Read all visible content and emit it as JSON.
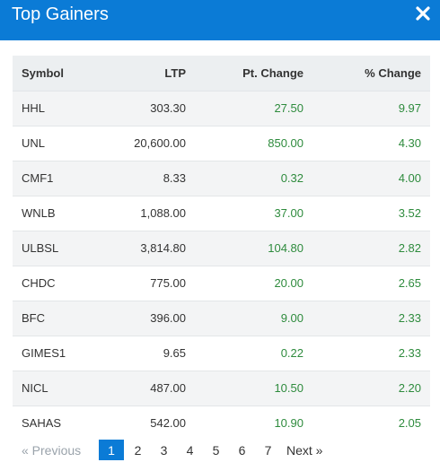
{
  "header": {
    "title": "Top Gainers",
    "background": "#0b7bd6"
  },
  "table": {
    "columns": [
      "Symbol",
      "LTP",
      "Pt. Change",
      "% Change"
    ],
    "rows": [
      {
        "symbol": "HHL",
        "ltp": "303.30",
        "pt_change": "27.50",
        "pct_change": "9.97"
      },
      {
        "symbol": "UNL",
        "ltp": "20,600.00",
        "pt_change": "850.00",
        "pct_change": "4.30"
      },
      {
        "symbol": "CMF1",
        "ltp": "8.33",
        "pt_change": "0.32",
        "pct_change": "4.00"
      },
      {
        "symbol": "WNLB",
        "ltp": "1,088.00",
        "pt_change": "37.00",
        "pct_change": "3.52"
      },
      {
        "symbol": "ULBSL",
        "ltp": "3,814.80",
        "pt_change": "104.80",
        "pct_change": "2.82"
      },
      {
        "symbol": "CHDC",
        "ltp": "775.00",
        "pt_change": "20.00",
        "pct_change": "2.65"
      },
      {
        "symbol": "BFC",
        "ltp": "396.00",
        "pt_change": "9.00",
        "pct_change": "2.33"
      },
      {
        "symbol": "GIMES1",
        "ltp": "9.65",
        "pt_change": "0.22",
        "pct_change": "2.33"
      },
      {
        "symbol": "NICL",
        "ltp": "487.00",
        "pt_change": "10.50",
        "pct_change": "2.20"
      },
      {
        "symbol": "SAHAS",
        "ltp": "542.00",
        "pt_change": "10.90",
        "pct_change": "2.05"
      }
    ],
    "gain_color": "#2e8b3d"
  },
  "pagination": {
    "previous": "«  Previous",
    "pages": [
      "1",
      "2",
      "3",
      "4",
      "5",
      "6",
      "7"
    ],
    "current": "1",
    "next": "Next  »"
  }
}
